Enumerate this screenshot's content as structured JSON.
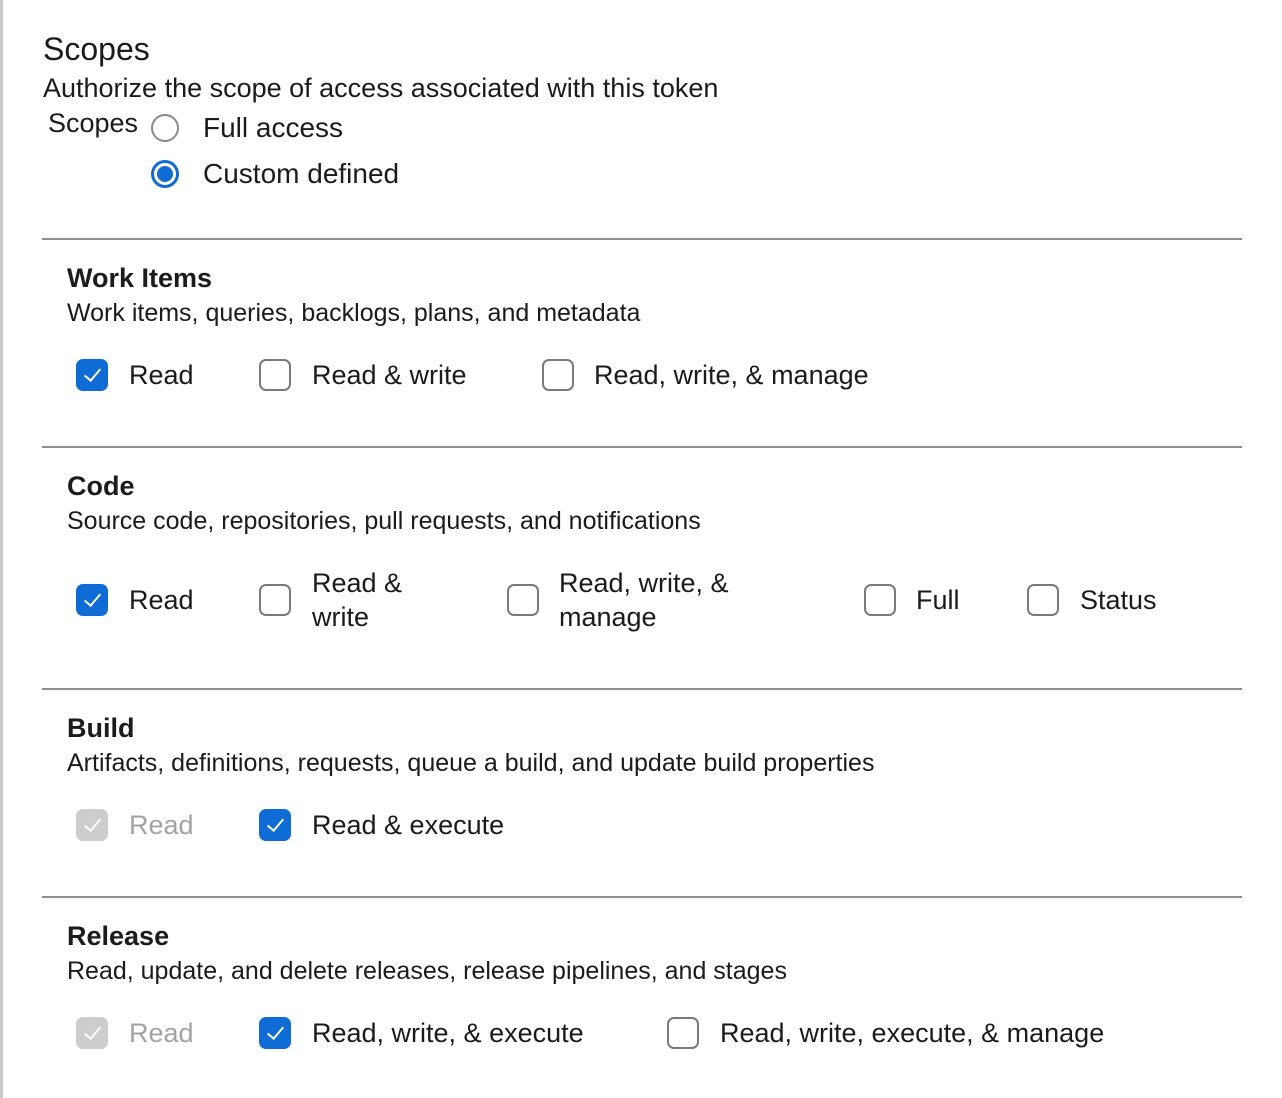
{
  "header": {
    "title": "Scopes",
    "subtitle": "Authorize the scope of access associated with this token",
    "scopes_label": "Scopes"
  },
  "access": {
    "options": [
      {
        "label": "Full access",
        "selected": false
      },
      {
        "label": "Custom defined",
        "selected": true
      }
    ]
  },
  "accent_color": "#0f6cd6",
  "sections": [
    {
      "title": "Work Items",
      "description": "Work items, queries, backlogs, plans, and metadata",
      "options": [
        {
          "label": "Read",
          "state": "checked"
        },
        {
          "label": "Read & write",
          "state": "unchecked"
        },
        {
          "label": "Read, write, & manage",
          "state": "unchecked"
        }
      ]
    },
    {
      "title": "Code",
      "description": "Source code, repositories, pull requests, and notifications",
      "options": [
        {
          "label": "Read",
          "state": "checked"
        },
        {
          "label": "Read & write",
          "state": "unchecked"
        },
        {
          "label": "Read, write, & manage",
          "state": "unchecked"
        },
        {
          "label": "Full",
          "state": "unchecked"
        },
        {
          "label": "Status",
          "state": "unchecked"
        }
      ]
    },
    {
      "title": "Build",
      "description": "Artifacts, definitions, requests, queue a build, and update build properties",
      "options": [
        {
          "label": "Read",
          "state": "disabled-checked"
        },
        {
          "label": "Read & execute",
          "state": "checked"
        }
      ]
    },
    {
      "title": "Release",
      "description": "Read, update, and delete releases, release pipelines, and stages",
      "options": [
        {
          "label": "Read",
          "state": "disabled-checked"
        },
        {
          "label": "Read, write, & execute",
          "state": "checked"
        },
        {
          "label": "Read, write, execute, & manage",
          "state": "unchecked"
        }
      ]
    }
  ]
}
